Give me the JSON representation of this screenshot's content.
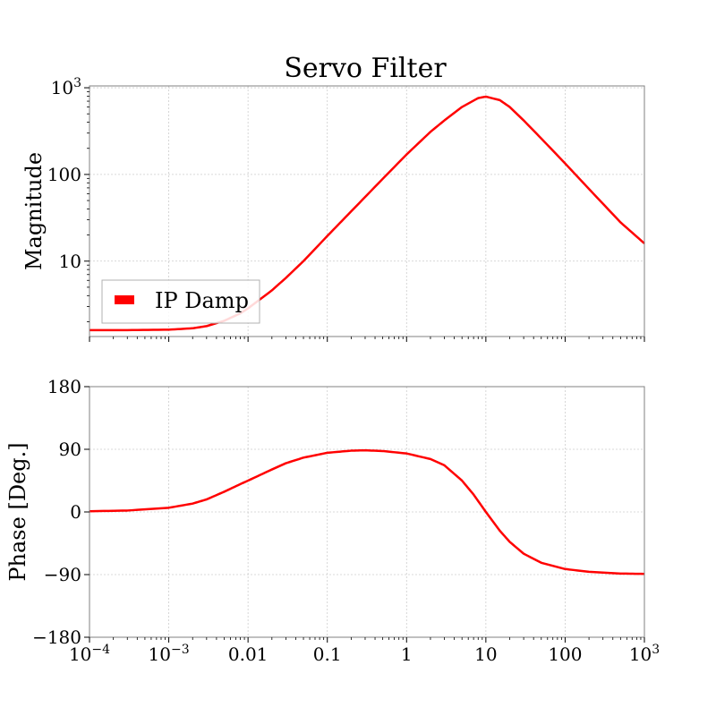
{
  "chart_data": [
    {
      "type": "line",
      "title": "Servo Filter",
      "xlabel": "",
      "ylabel": "Magnitude",
      "xscale": "log",
      "yscale": "log",
      "xlim": [
        0.0001,
        1000
      ],
      "ylim": [
        1.35,
        1050
      ],
      "xtick_labels": [
        "10^-4",
        "10^-3",
        "0.01",
        "0.1",
        "1",
        "10",
        "100",
        "10^3"
      ],
      "ytick_labels": [
        "10",
        "100",
        "10^3"
      ],
      "grid": true,
      "legend": {
        "placement": "lower-left",
        "entries": [
          "IP Damp"
        ]
      },
      "series": [
        {
          "name": "IP Damp",
          "color": "#ff0000",
          "x": [
            0.0001,
            0.0003,
            0.001,
            0.002,
            0.003,
            0.005,
            0.008,
            0.01,
            0.02,
            0.03,
            0.05,
            0.1,
            0.2,
            0.5,
            1,
            2,
            3,
            5,
            8,
            10,
            15,
            20,
            30,
            50,
            100,
            200,
            500,
            1000
          ],
          "y": [
            1.6,
            1.6,
            1.62,
            1.68,
            1.78,
            2.05,
            2.5,
            2.85,
            4.6,
            6.4,
            10.0,
            19.5,
            37.5,
            89,
            170,
            310,
            420,
            600,
            760,
            790,
            720,
            600,
            420,
            260,
            134,
            68,
            28,
            16
          ]
        }
      ]
    },
    {
      "type": "line",
      "title": "",
      "xlabel": "",
      "ylabel": "Phase [Deg.]",
      "xscale": "log",
      "yscale": "linear",
      "xlim": [
        0.0001,
        1000
      ],
      "ylim": [
        -180,
        180
      ],
      "xtick_labels": [
        "10^-4",
        "10^-3",
        "0.01",
        "0.1",
        "1",
        "10",
        "100",
        "10^3"
      ],
      "ytick_labels": [
        "180",
        "90",
        "0",
        "−90",
        "−180"
      ],
      "yticks": [
        180,
        90,
        0,
        -90,
        -180
      ],
      "grid": true,
      "series": [
        {
          "name": "IP Damp",
          "color": "#ff0000",
          "x": [
            0.0001,
            0.0003,
            0.001,
            0.002,
            0.003,
            0.005,
            0.008,
            0.01,
            0.02,
            0.03,
            0.05,
            0.1,
            0.2,
            0.3,
            0.5,
            1,
            2,
            3,
            5,
            7,
            10,
            15,
            20,
            30,
            50,
            100,
            200,
            500,
            1000
          ],
          "y": [
            1,
            2,
            6,
            12,
            18,
            29,
            40,
            45,
            61,
            70,
            78,
            85,
            88,
            88.5,
            87.5,
            84,
            76,
            67,
            45,
            25,
            0,
            -27,
            -43,
            -60,
            -73,
            -82,
            -86,
            -88.5,
            -89
          ]
        }
      ]
    }
  ]
}
